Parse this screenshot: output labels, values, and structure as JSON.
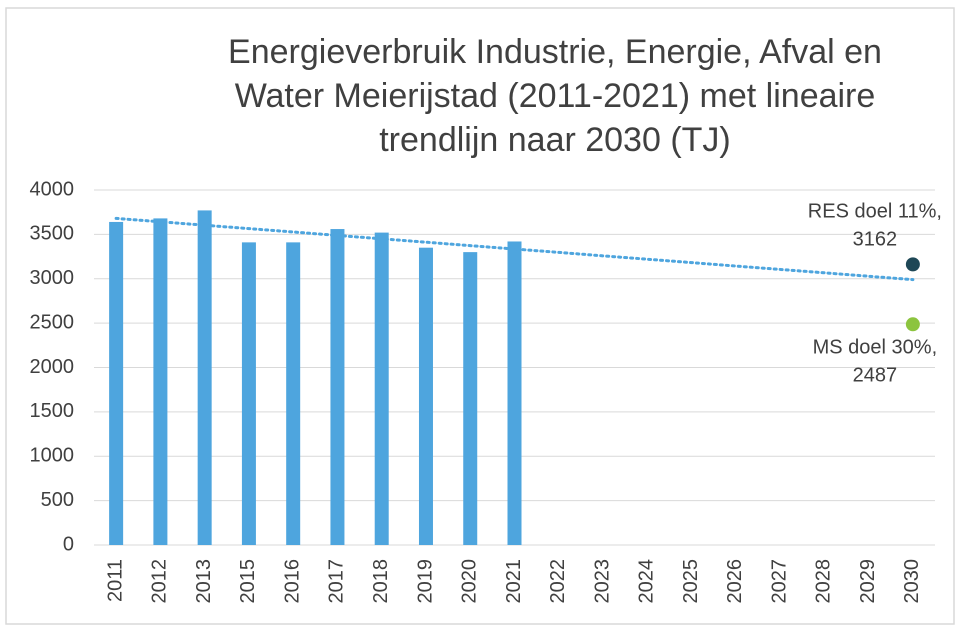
{
  "chart_data": {
    "type": "bar",
    "title": "Energieverbruik Industrie, Energie, Afval en Water Meierijstad (2011-2021) met lineaire trendlijn naar 2030 (TJ)",
    "categories": [
      "2011",
      "2012",
      "2013",
      "2015",
      "2016",
      "2017",
      "2018",
      "2019",
      "2020",
      "2021",
      "2022",
      "2023",
      "2024",
      "2025",
      "2026",
      "2027",
      "2028",
      "2029",
      "2030"
    ],
    "series": [
      {
        "type": "bar",
        "color": "#4ea5de",
        "values": [
          3640,
          3680,
          3770,
          3410,
          3410,
          3560,
          3520,
          3350,
          3300,
          3420,
          null,
          null,
          null,
          null,
          null,
          null,
          null,
          null,
          null
        ]
      },
      {
        "type": "line",
        "style": "dotted",
        "color": "#4ea5de",
        "values": [
          3680,
          3642,
          3603,
          3565,
          3527,
          3488,
          3450,
          3412,
          3373,
          3335,
          3297,
          3258,
          3220,
          3182,
          3143,
          3105,
          3067,
          3028,
          2990
        ]
      }
    ],
    "points": [
      {
        "name": "RES doel 11%,",
        "x": "2030",
        "value": 3162,
        "color": "#1e4756"
      },
      {
        "name": "MS doel 30%,",
        "x": "2030",
        "value": 2487,
        "color": "#8cc43f"
      }
    ],
    "ylim": [
      0,
      4000
    ],
    "yticks": [
      0,
      500,
      1000,
      1500,
      2000,
      2500,
      3000,
      3500,
      4000
    ],
    "grid": true
  }
}
